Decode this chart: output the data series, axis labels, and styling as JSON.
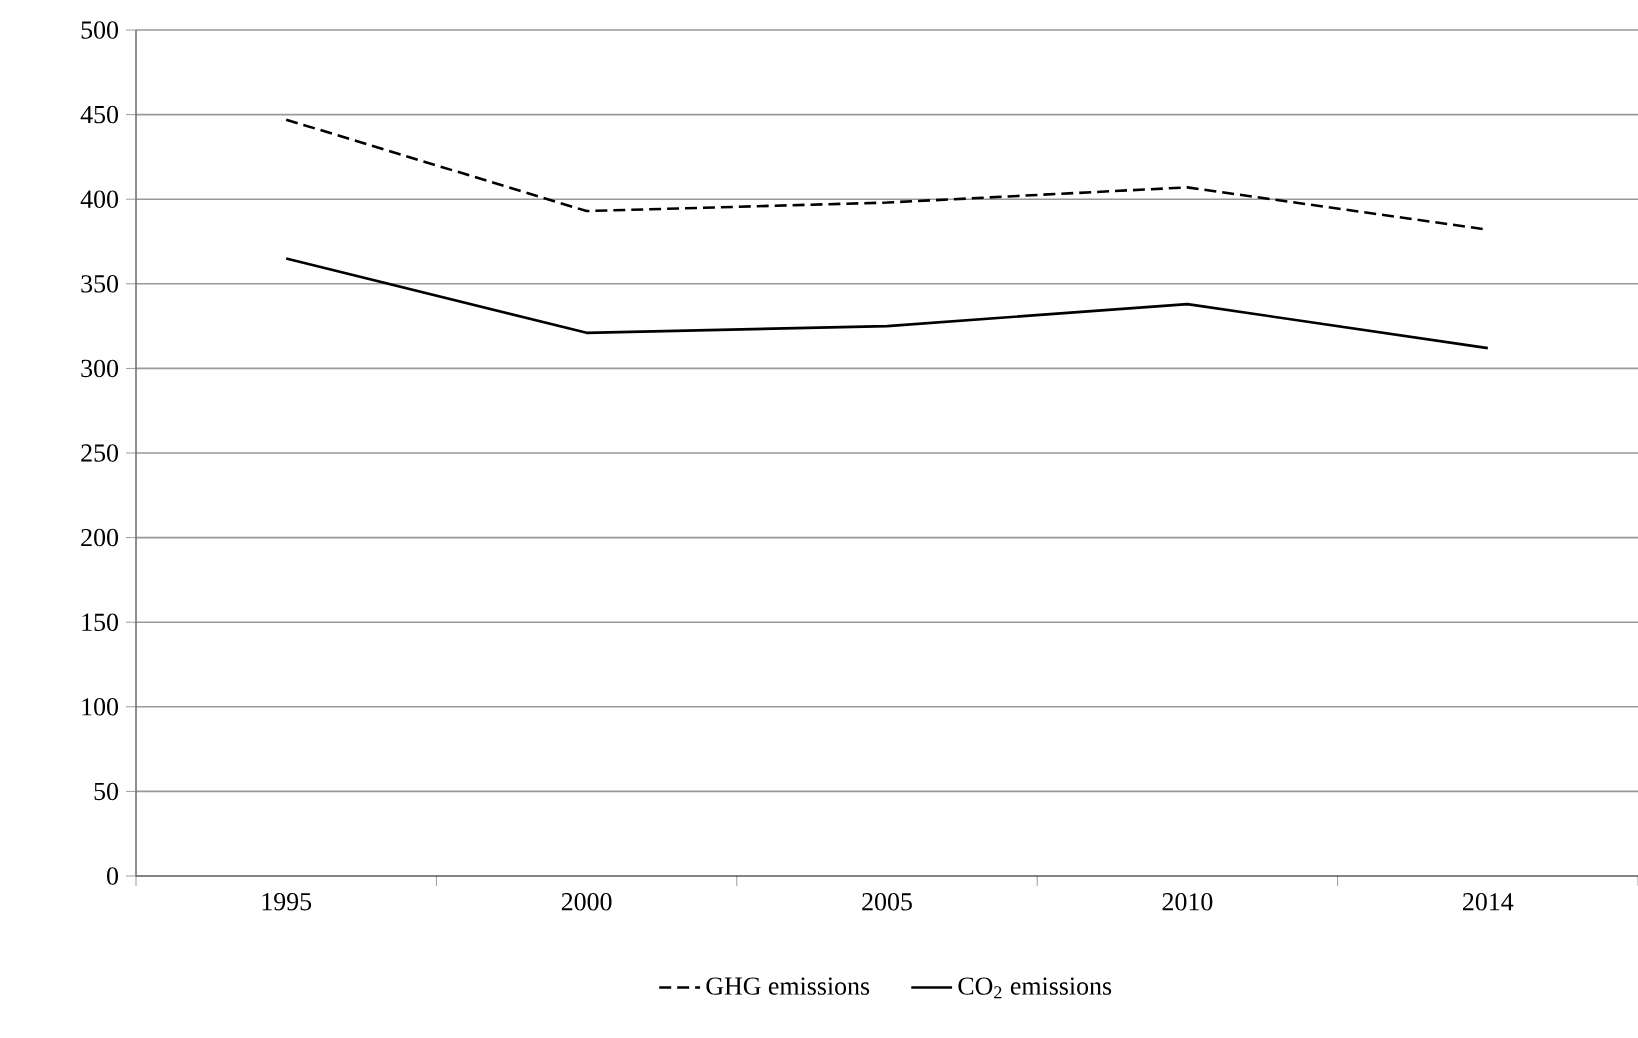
{
  "chart_data": {
    "type": "line",
    "categories": [
      "1995",
      "2000",
      "2005",
      "2010",
      "2014"
    ],
    "series": [
      {
        "name": "GHG emissions",
        "color": "#000000",
        "line_style": "dashed",
        "values": [
          447,
          393,
          398,
          407,
          382
        ]
      },
      {
        "name": "CO$_{2}$ emissions",
        "color": "#000000",
        "line_style": "solid",
        "values": [
          365,
          321,
          325,
          338,
          312
        ]
      }
    ],
    "ylim": [
      0,
      500
    ],
    "yticks": [
      0,
      50,
      100,
      150,
      200,
      250,
      300,
      350,
      400,
      450,
      500
    ],
    "grid": "y",
    "legend": "bottom",
    "marker": "none"
  }
}
